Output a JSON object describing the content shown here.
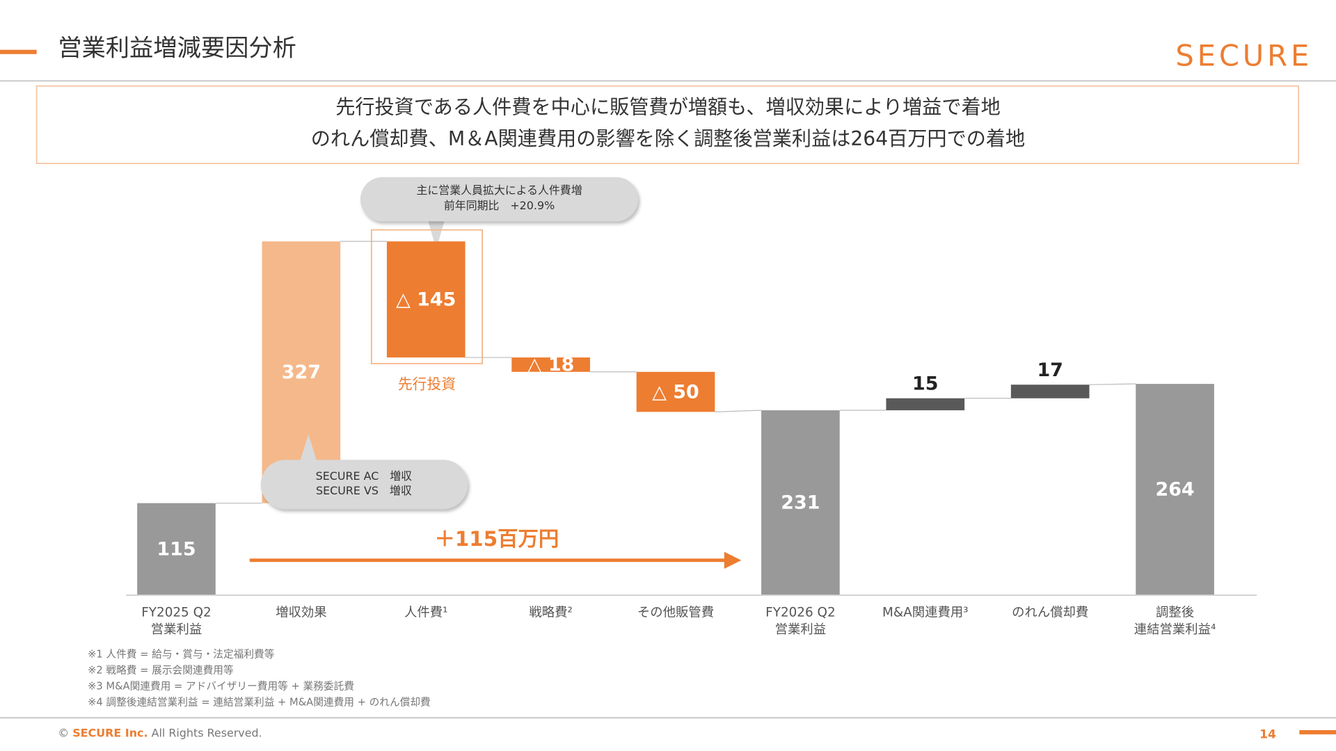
{
  "header": {
    "title": "営業利益増減要因分析",
    "logo": "SECURE"
  },
  "summary": [
    "先行投資である人件費を中心に販管費が増額も、増収効果により増益で着地",
    "のれん償却費、M＆A関連費用の影響を除く調整後営業利益は264百万円での着地"
  ],
  "chart_data": {
    "type": "waterfall",
    "categories": [
      [
        "FY2025 Q2",
        "営業利益"
      ],
      [
        "増収効果"
      ],
      [
        "人件費¹"
      ],
      [
        "戦略費²"
      ],
      [
        "その他販管費"
      ],
      [
        "FY2026 Q2",
        "営業利益"
      ],
      [
        "M&A関連費用³"
      ],
      [
        "のれん償却費"
      ],
      [
        "調整後",
        "連結営業利益⁴"
      ]
    ],
    "values": [
      115,
      327,
      -145,
      -18,
      -50,
      231,
      15,
      17,
      264
    ],
    "value_labels": [
      "115",
      "327",
      "△ 145",
      "△ 18",
      "△ 50",
      "231",
      "15",
      "17",
      "264"
    ],
    "bar_types": [
      "total",
      "increase",
      "decrease",
      "decrease",
      "decrease",
      "total",
      "adjustment",
      "adjustment",
      "total"
    ],
    "colors": {
      "total": "#999999",
      "increase": "#f5b88a",
      "decrease": "#ed7d31",
      "adjustment": "#595959"
    },
    "ylim": [
      0,
      500
    ],
    "annotations": {
      "callout_cost": [
        "主に営業人員拡大による人件費増",
        "前年同期比　+20.9%"
      ],
      "callout_revenue": [
        "SECURE AC　増収",
        "SECURE VS　増収"
      ],
      "highlight_label": "先行投資",
      "arrow_label": "＋115百万円"
    }
  },
  "footnotes": [
    "※1 人件費 = 給与・賞与・法定福利費等",
    "※2 戦略費 = 展示会関連費用等",
    "※3 M&A関連費用 = アドバイザリー費用等 + 業務委託費",
    "※4 調整後連結営業利益 = 連結営業利益 + M&A関連費用 + のれん償却費"
  ],
  "footer": {
    "symbol": "©",
    "company": "SECURE Inc.",
    "rest": "All Rights Reserved.",
    "page": "14"
  }
}
